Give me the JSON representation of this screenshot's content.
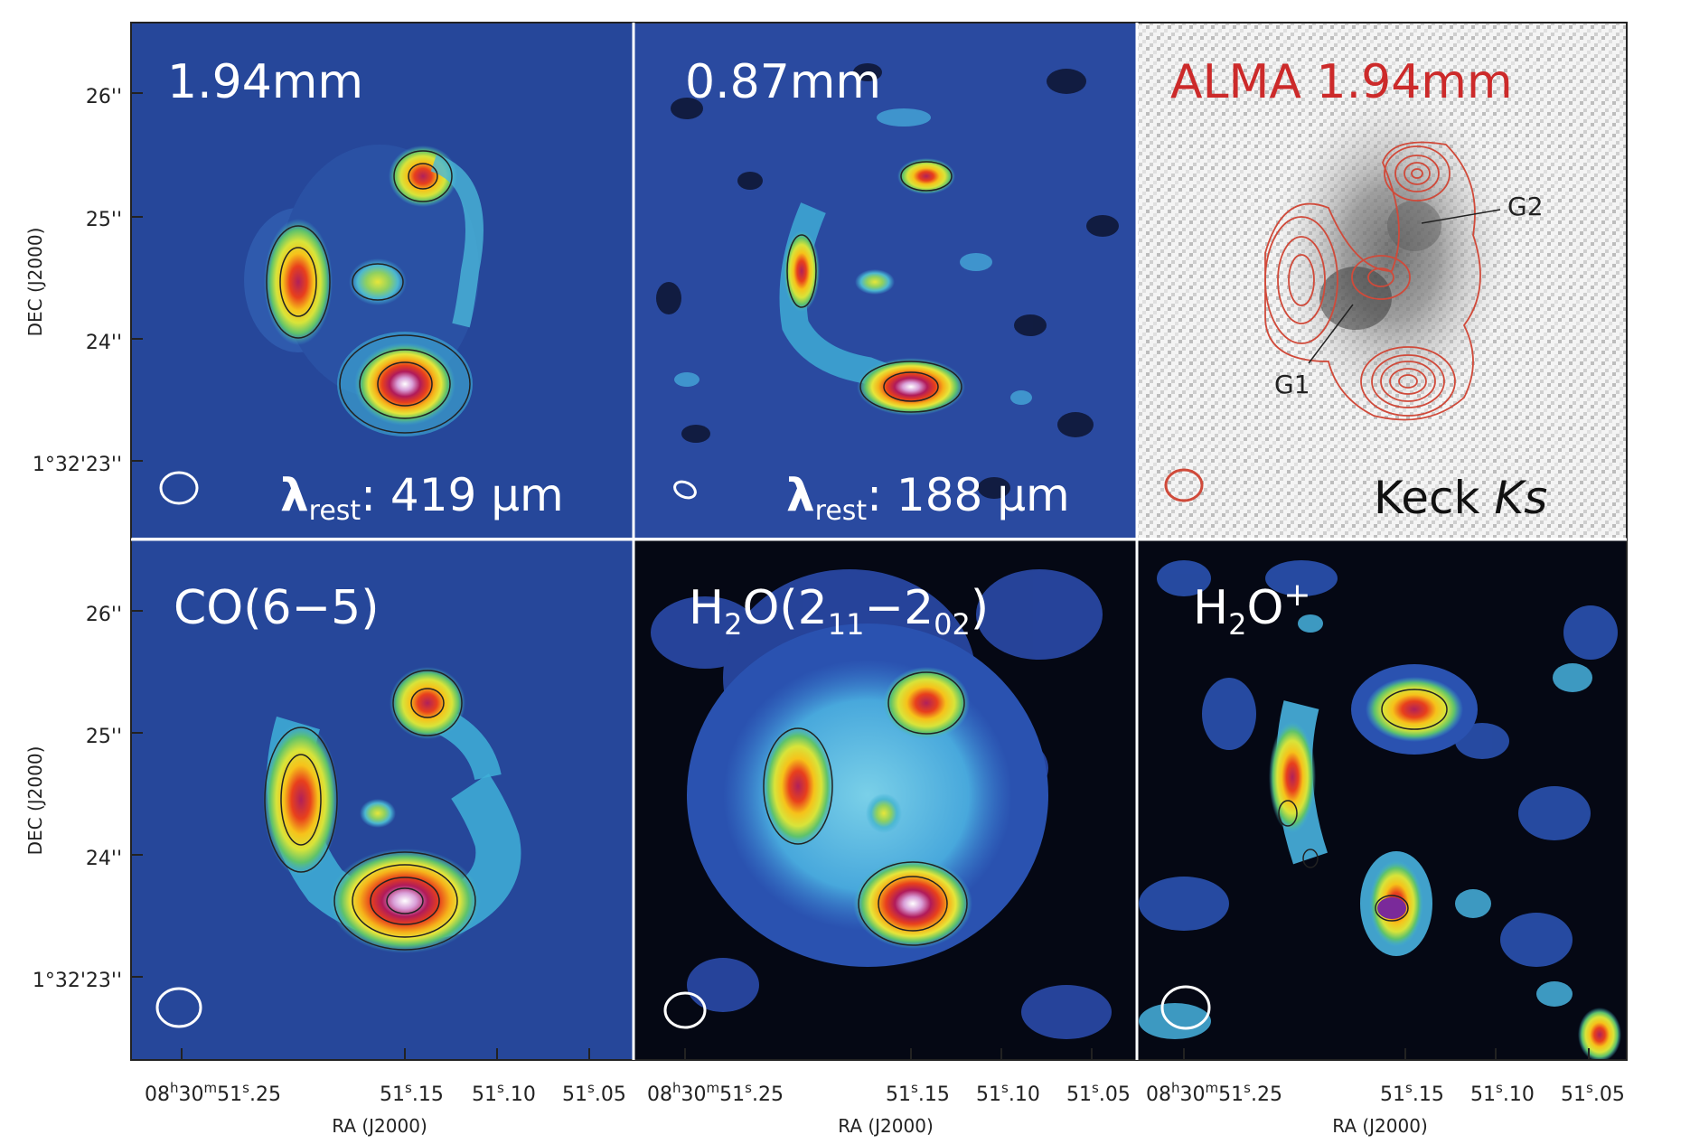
{
  "panels": [
    {
      "id": "p1",
      "label": "1.94mm",
      "rest_prefix": "λ",
      "rest_sub": "rest",
      "rest_value": ": 419 μm",
      "label_color": "#ffffff"
    },
    {
      "id": "p2",
      "label": "0.87mm",
      "rest_prefix": "λ",
      "rest_sub": "rest",
      "rest_value": ": 188 μm",
      "label_color": "#ffffff"
    },
    {
      "id": "p3",
      "label": "ALMA 1.94mm",
      "bottom_label": "Keck ",
      "bottom_label_italic": "Ks",
      "label_color": "#d03030",
      "annotations": [
        "G1",
        "G2"
      ]
    },
    {
      "id": "p4",
      "label": "CO(6−5)",
      "label_color": "#ffffff"
    },
    {
      "id": "p5",
      "label_main": "H",
      "label_sub1": "2",
      "label_mid": "O(2",
      "label_sub2": "11",
      "label_dash": "−2",
      "label_sub3": "02",
      "label_end": ")",
      "label_color": "#ffffff"
    },
    {
      "id": "p6",
      "label_main": "H",
      "label_sub1": "2",
      "label_mid": "O",
      "label_sup": "+",
      "label_color": "#ffffff"
    }
  ],
  "axes": {
    "y_label": "DEC (J2000)",
    "y_ticks": [
      "26''",
      "25''",
      "24''",
      "1°32'23''"
    ],
    "x_label": "RA (J2000)",
    "x_ticks_main": "08",
    "x_ticks_h": "h",
    "x_ticks_m": "30",
    "x_ticks_mm": "m",
    "x_ticks_s": "51",
    "x_ticks_ss": "s",
    "x_ticks_frac": ".25",
    "x_ticks": [
      "51",
      "51",
      "51"
    ],
    "x_ticks_fracs": [
      ".15",
      ".10",
      ".05"
    ]
  },
  "colors": {
    "map_bg": "#25479a",
    "map_dark": "#050814",
    "contour": "#222222",
    "alma_contour": "#d04a3a",
    "label_red": "#cc2a2a"
  }
}
